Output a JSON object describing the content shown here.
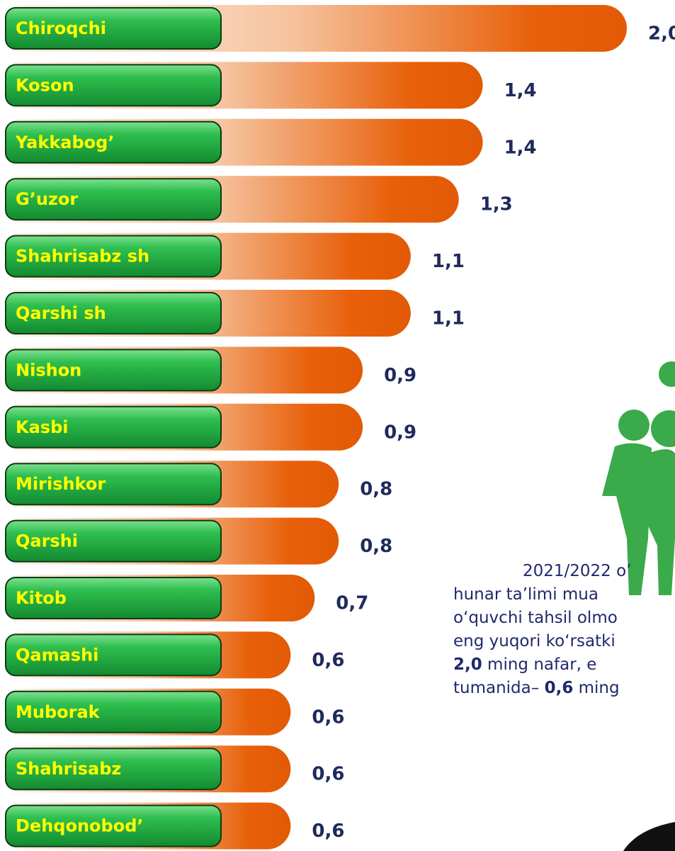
{
  "chart_data": {
    "type": "bar",
    "orientation": "horizontal",
    "categories": [
      "Chiroqchi",
      "Koson",
      "Yakkabog’",
      "G’uzor",
      "Shahrisabz sh",
      "Qarshi sh",
      "Nishon",
      "Kasbi",
      "Mirishkor",
      "Qarshi",
      "Kitob",
      "Qamashi",
      "Muborak",
      "Shahrisabz",
      "Dehqonobod’"
    ],
    "values": [
      2.0,
      1.4,
      1.4,
      1.3,
      1.1,
      1.1,
      0.9,
      0.9,
      0.8,
      0.8,
      0.7,
      0.6,
      0.6,
      0.6,
      0.6
    ],
    "value_labels": [
      "2,0",
      "1,4",
      "1,4",
      "1,3",
      "1,1",
      "1,1",
      "0,9",
      "0,9",
      "0,8",
      "0,8",
      "0,7",
      "0,6",
      "0,6",
      "0,6",
      "0,6"
    ],
    "color": "#e8600a",
    "label_color": "#22b14c",
    "annotation": [
      [
        {
          "text": "2021/2022 o’"
        }
      ],
      [
        {
          "text": "hunar ta’limi mua"
        }
      ],
      [
        {
          "text": "o‘quvchi tahsil olmo"
        }
      ],
      [
        {
          "text": "eng yuqori ko‘rsatki"
        }
      ],
      [
        {
          "text": "2,0",
          "bold": true
        },
        {
          "text": " ming nafar, e"
        }
      ],
      [
        {
          "text": "tumanida– "
        },
        {
          "text": "0,6",
          "bold": true
        },
        {
          "text": " ming"
        }
      ]
    ]
  }
}
